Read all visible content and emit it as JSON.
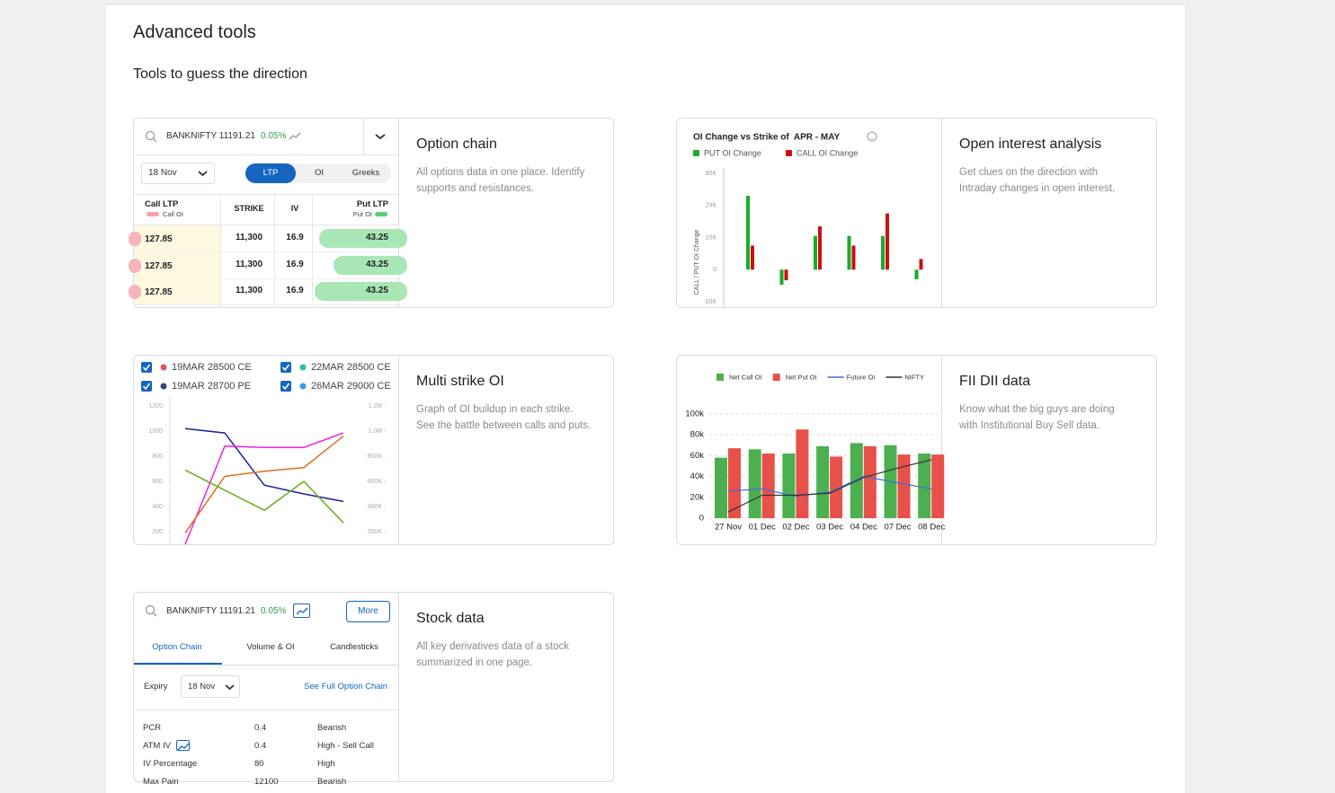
{
  "header": {
    "title": "Advanced tools",
    "subtitle": "Tools to guess the direction"
  },
  "cards": [
    {
      "title": "Option chain",
      "description": "All options data in one place. Identify supports and resistances.",
      "option_chain": {
        "symbol": "BANKNIFTY 11191.21",
        "change": "0.05%",
        "expiry": "18 Nov",
        "tabs": [
          "LTP",
          "OI",
          "Greeks"
        ],
        "selected_tab": 0,
        "headers": {
          "call_ltp": "Call LTP",
          "call_oi": "Call OI",
          "strike": "STRIKE",
          "iv": "IV",
          "put_ltp": "Put LTP",
          "put_oi": "Put OI"
        },
        "rows": [
          [
            "127.85",
            "11,300",
            "16.9",
            "43.25"
          ],
          [
            "127.85",
            "11,300",
            "16.9",
            "43.25"
          ],
          [
            "127.85",
            "11,300",
            "16.9",
            "43.25"
          ]
        ]
      }
    },
    {
      "title": "Open interest analysis",
      "description": "Get clues on the direction with Intraday changes in open interest.",
      "chart": {
        "type": "bar",
        "title": "OI Change vs Strike of  APR - MAY",
        "y_label": "CALL / PUT OI Change",
        "series": [
          {
            "name": "PUT OI Change",
            "color": "#1aab2a",
            "values": [
              23000,
              -4700,
              10500,
              10500,
              10500,
              -3000
            ]
          },
          {
            "name": "CALL OI Change",
            "color": "#cc1010",
            "values": [
              7500,
              -3300,
              13500,
              7500,
              17500,
              3300
            ]
          }
        ],
        "ylim": [
          -10000,
          30000
        ],
        "yticks": [
          {
            "value": 30000,
            "label": "30K"
          },
          {
            "value": 20000,
            "label": "20K"
          },
          {
            "value": 10000,
            "label": "10K"
          },
          0,
          {
            "value": -10000,
            "label": "-10K"
          }
        ]
      }
    },
    {
      "title": "Multi strike OI",
      "description": "Graph of OI buildup in each strike. See the battle between calls and puts.",
      "chart": {
        "type": "line",
        "legend": [
          {
            "label": "19MAR 28500 CE",
            "color": "#e05561",
            "checked": true
          },
          {
            "label": "22MAR 28500 CE",
            "color": "#27c29b",
            "checked": true
          },
          {
            "label": "19MAR 28700 PE",
            "color": "#3b3f7a",
            "checked": true
          },
          {
            "label": "26MAR 29000 CE",
            "color": "#3b9be8",
            "checked": true
          }
        ],
        "series": [
          {
            "color": "#1f1fa0",
            "values": [
              1020,
              985,
              570,
              500,
              440
            ]
          },
          {
            "color": "#f020e0",
            "values": [
              100,
              880,
              870,
              870,
              985
            ]
          },
          {
            "color": "#d8701e",
            "values": [
              190,
              640,
              680,
              710,
              960
            ]
          },
          {
            "color": "#6aae1e",
            "values": [
              690,
              530,
              370,
              600,
              270
            ]
          }
        ],
        "ylim": [
          100,
          1250
        ],
        "yticks": [
          1200,
          1000,
          800,
          600,
          400,
          200
        ],
        "y2lim": [
          100000,
          1250000
        ],
        "y2ticks": [
          {
            "value": 1200000,
            "label": "1.2M"
          },
          {
            "value": 1000000,
            "label": "1.0M"
          },
          {
            "value": 800000,
            "label": "800K"
          },
          {
            "value": 600000,
            "label": "600K"
          },
          {
            "value": 400000,
            "label": "400K"
          },
          {
            "value": 200000,
            "label": "200K"
          }
        ]
      }
    },
    {
      "title": "FII DII data",
      "description": "Know what the big guys are doing with Institutional Buy Sell data.",
      "chart": {
        "type": "bar",
        "categories": [
          "27 Nov",
          "01 Dec",
          "02 Dec",
          "03 Dec",
          "04 Dec",
          "07 Dec",
          "08 Dec"
        ],
        "series": [
          {
            "name": "Net Call OI",
            "type": "bar",
            "color": "#4caf50",
            "values": [
              58000,
              66000,
              62000,
              69000,
              72000,
              70000,
              62000
            ]
          },
          {
            "name": "Net Put OI",
            "type": "bar",
            "color": "#e8504a",
            "values": [
              67000,
              62000,
              85000,
              59000,
              69000,
              61000,
              61000
            ]
          },
          {
            "name": "Future OI",
            "type": "line",
            "color": "#3a6fd8",
            "values": [
              26000,
              28000,
              21000,
              25000,
              40000,
              34000,
              28000
            ]
          },
          {
            "name": "NIFTY",
            "type": "line",
            "color": "#333333",
            "values": [
              6000,
              22000,
              22000,
              24000,
              39000,
              48000,
              56000
            ]
          }
        ],
        "ylim": [
          0,
          105000
        ],
        "yticks": [
          0,
          {
            "value": 20000,
            "label": "20k"
          },
          {
            "value": 40000,
            "label": "40k"
          },
          {
            "value": 60000,
            "label": "60k"
          },
          {
            "value": 80000,
            "label": "80k"
          },
          {
            "value": 100000,
            "label": "100k"
          }
        ],
        "grid": true
      }
    },
    {
      "title": "Stock data",
      "description": "All key derivatives data of a stock summarized in one page.",
      "stock": {
        "symbol": "BANKNIFTY 11191.21",
        "change": "0.05%",
        "more": "More",
        "tabs": [
          "Option Chain",
          "Volume & OI",
          "Candlesticks"
        ],
        "selected_tab": 0,
        "expiry_label": "Expiry",
        "expiry": "18 Nov",
        "link": "See Full Option Chain",
        "rows": [
          [
            "PCR",
            "0.4",
            "Bearish"
          ],
          [
            "ATM IV",
            "0.4",
            "High - Sell Call"
          ],
          [
            "IV Percentage",
            "80",
            "High"
          ],
          [
            "Max Pain",
            "12100",
            "Bearish"
          ]
        ]
      }
    }
  ]
}
